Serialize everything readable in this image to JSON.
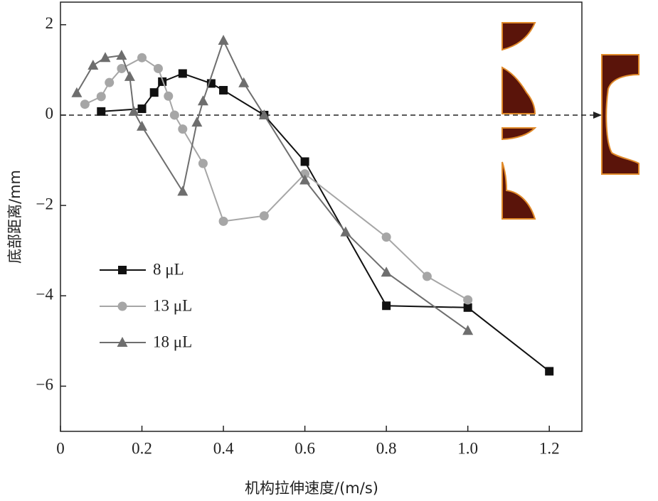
{
  "chart_data": {
    "type": "line",
    "x_label": "机构拉伸速度/(m/s)",
    "y_label": "底部距离/mm",
    "xlim": [
      0,
      1.28
    ],
    "ylim": [
      -7,
      2.5
    ],
    "xticks": [
      0,
      0.2,
      0.4,
      0.6,
      0.8,
      {
        "value": 1,
        "label": "1.0"
      },
      1.2
    ],
    "yticks": [
      2,
      0,
      {
        "value": -2,
        "label": "−2"
      },
      {
        "value": -4,
        "label": "−4"
      },
      {
        "value": -6,
        "label": "−6"
      }
    ],
    "series": [
      {
        "name": "8 μL",
        "color": "#111111",
        "marker": "square",
        "x": [
          0.1,
          0.2,
          0.23,
          0.25,
          0.3,
          0.37,
          0.4,
          0.5,
          0.6,
          0.8,
          1.0,
          1.2
        ],
        "values": [
          0.08,
          0.14,
          0.5,
          0.74,
          0.92,
          0.7,
          0.55,
          0,
          -1.03,
          -4.22,
          -4.26,
          -5.67
        ]
      },
      {
        "name": "13 μL",
        "color": "#a6a6a6",
        "marker": "circle",
        "x": [
          0.06,
          0.1,
          0.12,
          0.15,
          0.2,
          0.24,
          0.265,
          0.28,
          0.3,
          0.35,
          0.4,
          0.5,
          0.6,
          0.8,
          0.9,
          1.0
        ],
        "values": [
          0.24,
          0.41,
          0.72,
          1.03,
          1.27,
          1.03,
          0.42,
          0,
          -0.31,
          -1.07,
          -2.35,
          -2.23,
          -1.3,
          -2.7,
          -3.57,
          -4.09
        ]
      },
      {
        "name": "18 μL",
        "color": "#6e6e6e",
        "marker": "triangle",
        "x": [
          0.04,
          0.08,
          0.11,
          0.15,
          0.17,
          0.18,
          0.2,
          0.3,
          0.335,
          0.35,
          0.4,
          0.45,
          0.5,
          0.6,
          0.7,
          0.8,
          1.0
        ],
        "values": [
          0.49,
          1.1,
          1.27,
          1.32,
          0.85,
          0.08,
          -0.25,
          -1.69,
          -0.16,
          0.31,
          1.65,
          0.71,
          0,
          -1.44,
          -2.59,
          -3.48,
          -4.77
        ]
      }
    ]
  }
}
